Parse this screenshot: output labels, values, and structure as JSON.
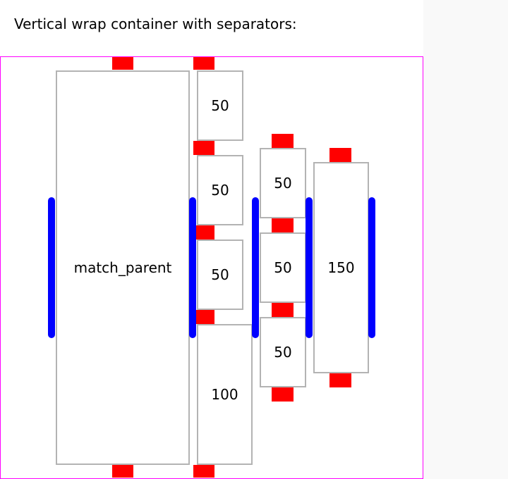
{
  "header": {
    "title": "Vertical wrap container with separators:"
  },
  "items": {
    "match_parent": "match_parent",
    "col2_a": "50",
    "col2_b": "50",
    "col2_c": "50",
    "col2_d": "100",
    "col3_a": "50",
    "col3_b": "50",
    "col3_c": "50",
    "col4_a": "150"
  },
  "colors": {
    "container_border": "#ff00ff",
    "item_separator": "#ff0000",
    "line_separator": "#0000ff",
    "item_border": "#b3b3b3"
  }
}
